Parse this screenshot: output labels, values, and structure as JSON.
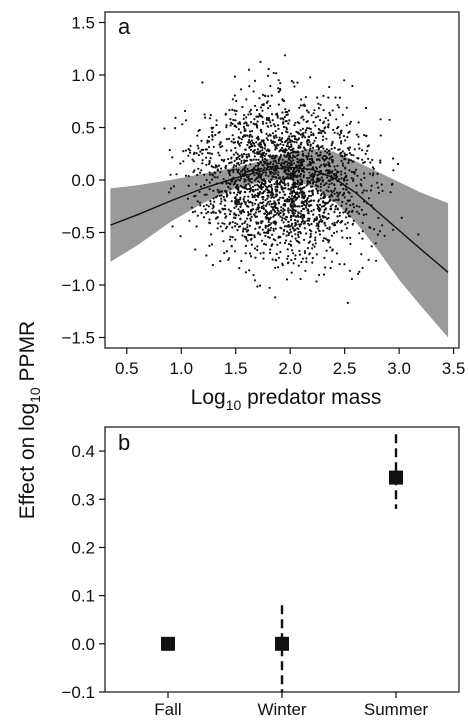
{
  "figure": {
    "ylabel_pre": "Effect on log",
    "ylabel_sub": "10",
    "ylabel_post": " PPMR"
  },
  "chart_data": [
    {
      "type": "scatter",
      "panel_label": "a",
      "xlabel_pre": "Log",
      "xlabel_sub": "10",
      "xlabel_post": " predator mass",
      "xlim": [
        0.3,
        3.55
      ],
      "ylim": [
        -1.6,
        1.6
      ],
      "xticks": [
        "0.5",
        "1.0",
        "1.5",
        "2.0",
        "2.5",
        "3.0",
        "3.5"
      ],
      "yticks": [
        "1.5",
        "1.0",
        "0.5",
        "0.0",
        "−0.5",
        "−1.0",
        "−1.5"
      ],
      "ytick_values": [
        1.5,
        1.0,
        0.5,
        0.0,
        -0.5,
        -1.0,
        -1.5
      ],
      "xtick_values": [
        0.5,
        1.0,
        1.5,
        2.0,
        2.5,
        3.0,
        3.5
      ],
      "point_color": "#111111",
      "band_color": "#9a9a9a",
      "point_cloud": {
        "description_units": "data",
        "approx_n": 2400,
        "x_center": 1.95,
        "x_spread": 0.55,
        "y_center": 0.0,
        "y_spread": 0.55
      },
      "fit": {
        "x": [
          0.35,
          0.6,
          0.9,
          1.2,
          1.5,
          1.8,
          2.0,
          2.2,
          2.4,
          2.6,
          2.8,
          3.0,
          3.2,
          3.45
        ],
        "y": [
          -0.43,
          -0.33,
          -0.2,
          -0.08,
          0.02,
          0.1,
          0.12,
          0.1,
          0.02,
          -0.12,
          -0.3,
          -0.48,
          -0.66,
          -0.88
        ]
      },
      "band": {
        "upper": [
          -0.08,
          -0.05,
          0.0,
          0.06,
          0.12,
          0.2,
          0.26,
          0.3,
          0.27,
          0.18,
          0.08,
          -0.02,
          -0.12,
          -0.22
        ],
        "lower": [
          -0.78,
          -0.62,
          -0.4,
          -0.22,
          -0.08,
          0.0,
          0.0,
          -0.06,
          -0.2,
          -0.4,
          -0.66,
          -0.95,
          -1.2,
          -1.5
        ]
      }
    },
    {
      "type": "scatter",
      "panel_label": "b",
      "categories": [
        "Fall",
        "Winter",
        "Summer"
      ],
      "ylim": [
        -0.1,
        0.45
      ],
      "yticks": [
        "0.4",
        "0.3",
        "0.2",
        "0.1",
        "0.0",
        "−0.1"
      ],
      "ytick_values": [
        0.4,
        0.3,
        0.2,
        0.1,
        0.0,
        -0.1
      ],
      "values": [
        0.0,
        0.0,
        0.345
      ],
      "ci_low": [
        null,
        -0.1,
        0.28
      ],
      "ci_high": [
        null,
        0.08,
        0.435
      ],
      "marker_color": "#111111"
    }
  ]
}
